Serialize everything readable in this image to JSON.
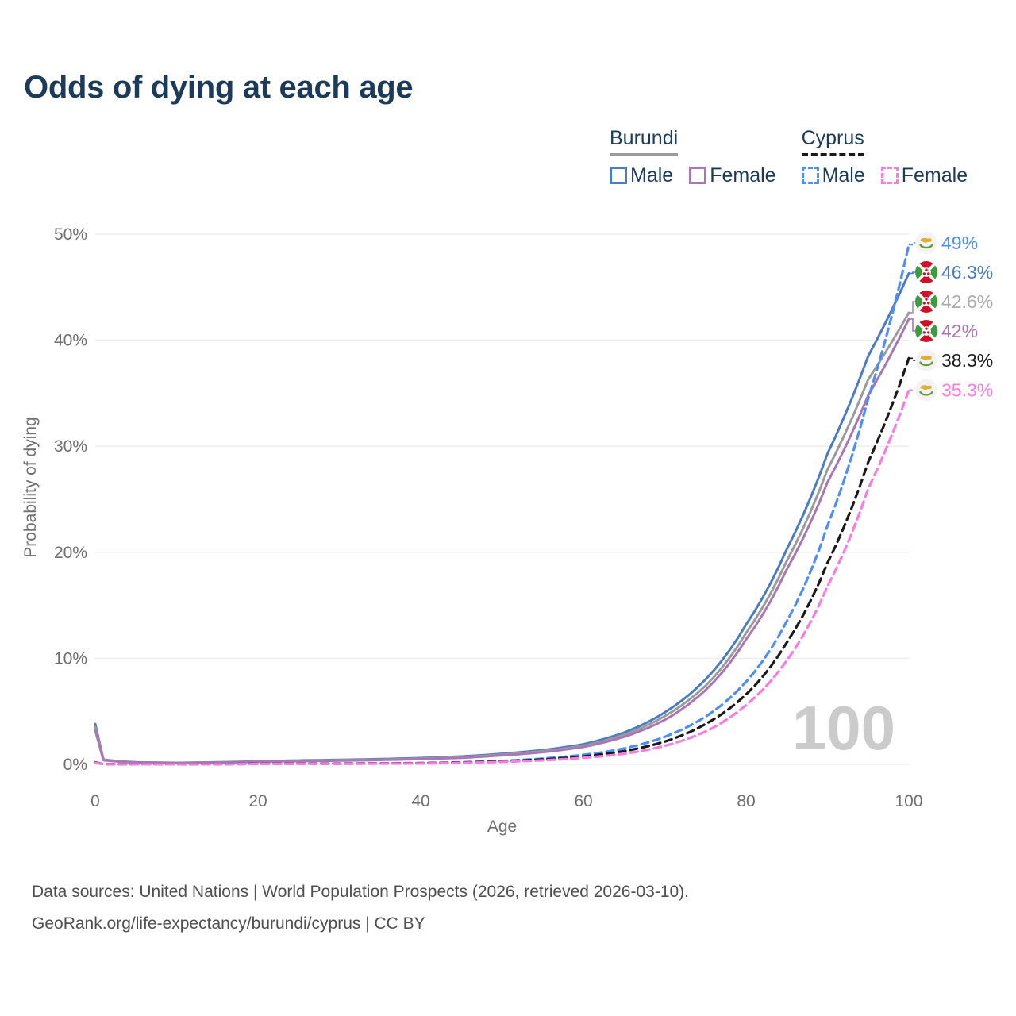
{
  "title": "Odds of dying at each age",
  "legend": {
    "groups": [
      {
        "label": "Burundi",
        "line_style": "solid",
        "underline_color": "#9b9b9b",
        "items": [
          {
            "label": "Male",
            "color": "#4a7bc5"
          },
          {
            "label": "Female",
            "color": "#aa76b5"
          }
        ]
      },
      {
        "label": "Cyprus",
        "line_style": "dashed",
        "underline_color": "#1a1a1a",
        "items": [
          {
            "label": "Male",
            "color": "#4d8ef7"
          },
          {
            "label": "Female",
            "color": "#f97ce3"
          }
        ]
      }
    ]
  },
  "footer": {
    "line1": "Data sources: United Nations | World Population Prospects (2026, retrieved 2026-03-10).",
    "line2": "GeoRank.org/life-expectancy/burundi/cyprus | CC BY"
  },
  "chart_data": {
    "type": "line",
    "xlabel": "Age",
    "ylabel": "Probability of dying",
    "xlim": [
      0,
      100
    ],
    "ylim": [
      0,
      50
    ],
    "xticks": [
      0,
      20,
      40,
      60,
      80,
      100
    ],
    "xtick_labels": [
      "0",
      "20",
      "40",
      "60",
      "80",
      "100"
    ],
    "yticks": [
      0,
      10,
      20,
      30,
      40,
      50
    ],
    "ytick_labels": [
      "0%",
      "10%",
      "20%",
      "30%",
      "40%",
      "50%"
    ],
    "grid": "horizontal",
    "legend_position": "top-right",
    "watermark": "100",
    "ages": [
      0,
      1,
      5,
      10,
      15,
      20,
      25,
      30,
      35,
      40,
      45,
      50,
      55,
      60,
      65,
      70,
      75,
      80,
      85,
      90,
      95,
      100
    ],
    "series": [
      {
        "id": "burundi-male",
        "name": "Burundi Male",
        "country": "Burundi",
        "sex": "Male",
        "flag": "burundi",
        "color": "#4a7bc5",
        "line_style": "solid",
        "end_label": "46.3%",
        "label_color": "#4a7bc5",
        "values": [
          3.8,
          0.45,
          0.2,
          0.15,
          0.2,
          0.3,
          0.37,
          0.43,
          0.5,
          0.6,
          0.75,
          1.0,
          1.35,
          1.9,
          3.0,
          4.9,
          8.0,
          13.2,
          20.3,
          29.3,
          38.5,
          46.3
        ]
      },
      {
        "id": "burundi-total",
        "name": "Burundi (both sexes)",
        "country": "Burundi",
        "sex": "Both",
        "flag": "burundi",
        "color": "#9b9b9b",
        "line_style": "solid",
        "end_label": "42.6%",
        "label_color": "#ababab",
        "values": [
          3.5,
          0.42,
          0.18,
          0.14,
          0.18,
          0.27,
          0.33,
          0.39,
          0.45,
          0.55,
          0.68,
          0.92,
          1.25,
          1.75,
          2.8,
          4.55,
          7.4,
          12.4,
          19.2,
          27.8,
          36.3,
          42.6
        ]
      },
      {
        "id": "burundi-female",
        "name": "Burundi Female",
        "country": "Burundi",
        "sex": "Female",
        "flag": "burundi",
        "color": "#aa76b5",
        "line_style": "solid",
        "end_label": "42%",
        "label_color": "#aa76b5",
        "values": [
          3.2,
          0.38,
          0.17,
          0.13,
          0.16,
          0.24,
          0.3,
          0.35,
          0.41,
          0.5,
          0.62,
          0.85,
          1.15,
          1.65,
          2.6,
          4.2,
          7.0,
          11.8,
          18.4,
          26.6,
          34.8,
          42.0
        ]
      },
      {
        "id": "cyprus-male",
        "name": "Cyprus Male",
        "country": "Cyprus",
        "sex": "Male",
        "flag": "cyprus",
        "color": "#4d8ef7",
        "line_style": "dashed",
        "end_label": "49%",
        "label_color": "#4d8ef7",
        "values": [
          0.2,
          0.03,
          0.01,
          0.01,
          0.04,
          0.06,
          0.07,
          0.08,
          0.1,
          0.13,
          0.2,
          0.33,
          0.55,
          0.9,
          1.5,
          2.6,
          4.5,
          7.8,
          13.5,
          22.5,
          34.5,
          49.0
        ]
      },
      {
        "id": "cyprus-total",
        "name": "Cyprus (both sexes)",
        "country": "Cyprus",
        "sex": "Both",
        "flag": "cyprus",
        "color": "#1a1a1a",
        "line_style": "dashed",
        "end_label": "38.3%",
        "label_color": "#1a1a1a",
        "values": [
          0.18,
          0.025,
          0.01,
          0.01,
          0.03,
          0.05,
          0.06,
          0.07,
          0.09,
          0.11,
          0.17,
          0.28,
          0.46,
          0.75,
          1.25,
          2.15,
          3.8,
          6.6,
          11.5,
          19.0,
          28.5,
          38.3
        ]
      },
      {
        "id": "cyprus-female",
        "name": "Cyprus Female",
        "country": "Cyprus",
        "sex": "Female",
        "flag": "cyprus",
        "color": "#f97ce3",
        "line_style": "dashed",
        "end_label": "35.3%",
        "label_color": "#f97ce3",
        "values": [
          0.15,
          0.02,
          0.01,
          0.01,
          0.02,
          0.035,
          0.045,
          0.055,
          0.07,
          0.09,
          0.14,
          0.23,
          0.38,
          0.62,
          1.0,
          1.75,
          3.1,
          5.6,
          9.8,
          16.8,
          26.0,
          35.3
        ]
      }
    ]
  }
}
